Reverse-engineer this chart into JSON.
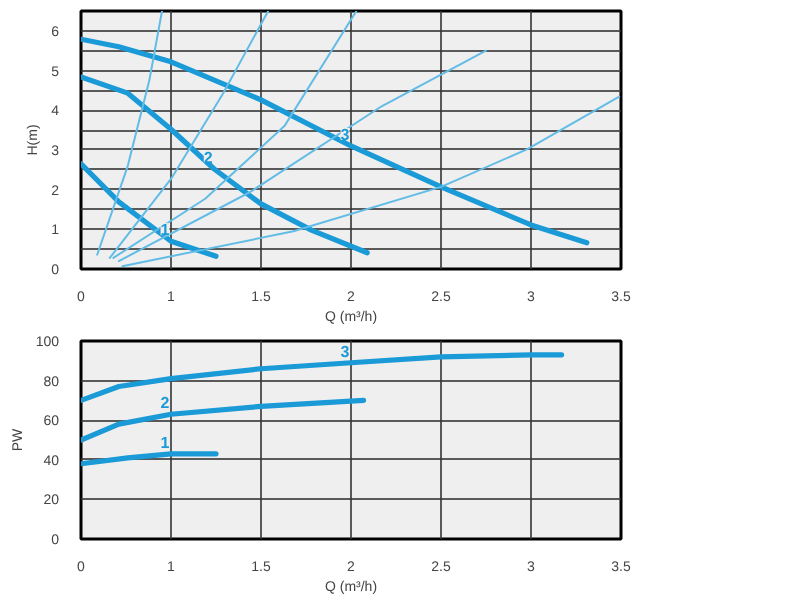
{
  "chart_data": [
    {
      "type": "line",
      "xlabel": "Q (m³/h)",
      "ylabel": "H(m)",
      "xlim": [
        0.5,
        3.5
      ],
      "ylim": [
        0,
        6.5
      ],
      "xticks": [
        {
          "value": 0.5,
          "label": "0"
        },
        1,
        1.5,
        2,
        2.5,
        3,
        3.5
      ],
      "yticks": [
        0,
        {
          "value": 0.5,
          "label": null
        },
        1,
        {
          "value": 1.5,
          "label": null
        },
        2,
        {
          "value": 2.5,
          "label": null
        },
        3,
        {
          "value": 3.5,
          "label": null
        },
        4,
        {
          "value": 4.5,
          "label": null
        },
        5,
        {
          "value": 5.5,
          "label": null
        },
        6
      ],
      "grid": true,
      "series": [
        {
          "name": "3",
          "color": "#1a9ad6",
          "x": [
            0.5,
            0.71,
            1,
            1.5,
            2,
            2.5,
            3,
            3.31
          ],
          "values": [
            5.79,
            5.6,
            5.22,
            4.26,
            3.1,
            2.07,
            1.11,
            0.66
          ]
        },
        {
          "name": "2",
          "color": "#1a9ad6",
          "x": [
            0.5,
            0.76,
            1,
            1.24,
            1.5,
            1.78,
            2.09
          ],
          "values": [
            4.84,
            4.43,
            3.52,
            2.52,
            1.64,
            0.98,
            0.41
          ]
        },
        {
          "name": "1",
          "color": "#1a9ad6",
          "x": [
            0.5,
            0.71,
            1,
            1.25
          ],
          "values": [
            2.65,
            1.69,
            0.7,
            0.32
          ]
        },
        {
          "color": "#62bce6",
          "x": [
            0.59,
            0.76,
            0.88,
            0.95
          ],
          "values": [
            0.36,
            2.6,
            4.76,
            6.5
          ]
        },
        {
          "color": "#62bce6",
          "x": [
            0.66,
            1,
            1.29,
            1.54
          ],
          "values": [
            0.28,
            2.27,
            4.43,
            6.5
          ]
        },
        {
          "color": "#62bce6",
          "x": [
            0.68,
            1.19,
            1.63,
            2.03
          ],
          "values": [
            0.28,
            1.77,
            3.6,
            6.5
          ]
        },
        {
          "color": "#62bce6",
          "x": [
            0.71,
            1.44,
            2.17,
            2.75
          ],
          "values": [
            0.2,
            1.94,
            4.1,
            5.5
          ]
        },
        {
          "color": "#62bce6",
          "x": [
            0.73,
            1.68,
            2.5,
            2.98,
            3.49
          ],
          "values": [
            0.07,
            0.95,
            2.07,
            3.02,
            4.34
          ]
        }
      ]
    },
    {
      "type": "line",
      "xlabel": "Q (m³/h)",
      "ylabel": "PW",
      "xlim": [
        0.5,
        3.5
      ],
      "ylim": [
        0,
        100
      ],
      "xticks": [
        {
          "value": 0.5,
          "label": "0"
        },
        1,
        1.5,
        2,
        2.5,
        3,
        3.5
      ],
      "yticks": [
        0,
        20,
        40,
        60,
        80,
        100
      ],
      "grid": true,
      "series": [
        {
          "name": "3",
          "color": "#1a9ad6",
          "x": [
            0.5,
            0.71,
            1,
            1.5,
            2,
            2.5,
            3,
            3.17
          ],
          "values": [
            70,
            77,
            81,
            86,
            89,
            92,
            93,
            93
          ]
        },
        {
          "name": "2",
          "color": "#1a9ad6",
          "x": [
            0.5,
            0.71,
            1,
            1.5,
            2.07
          ],
          "values": [
            50,
            58,
            63,
            67,
            70
          ]
        },
        {
          "name": "1",
          "color": "#1a9ad6",
          "x": [
            0.5,
            0.76,
            1,
            1.25
          ],
          "values": [
            38,
            41,
            43,
            43
          ]
        }
      ]
    }
  ]
}
